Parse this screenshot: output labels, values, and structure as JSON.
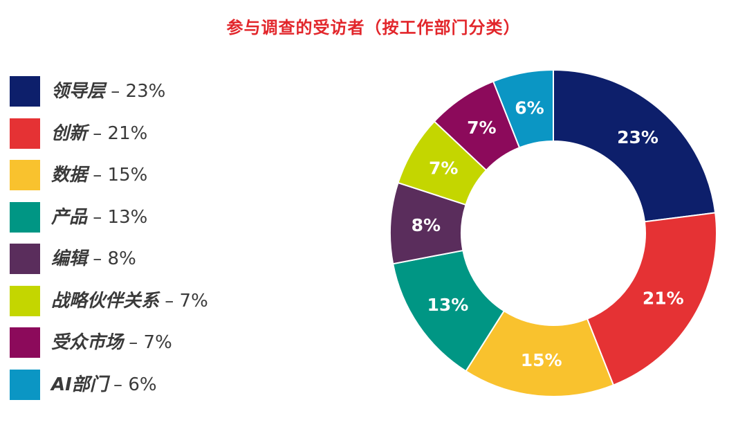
{
  "chart_data": {
    "type": "pie",
    "title": "参与调查的受访者（按工作部门分类）",
    "categories": [
      "领导层",
      "创新",
      "数据",
      "产品",
      "编辑",
      "战略伙伴关系",
      "受众市场",
      "AI部门"
    ],
    "values": [
      23,
      21,
      15,
      13,
      8,
      7,
      7,
      6
    ],
    "value_labels": [
      "23%",
      "21%",
      "15%",
      "13%",
      "8%",
      "7%",
      "7%",
      "6%"
    ],
    "colors": [
      "#0d1f6b",
      "#e53234",
      "#f9c22e",
      "#009684",
      "#5a2d5c",
      "#c4d600",
      "#8c0a5b",
      "#0b96c4"
    ],
    "legend": {
      "position": "left",
      "separator": "–",
      "items": [
        {
          "label": "领导层",
          "value_label": "23%"
        },
        {
          "label": "创新",
          "value_label": "21%"
        },
        {
          "label": "数据",
          "value_label": "15%"
        },
        {
          "label": "产品",
          "value_label": "13%"
        },
        {
          "label": "编辑",
          "value_label": "8%"
        },
        {
          "label": "战略伙伴关系",
          "value_label": "7%"
        },
        {
          "label": "受众市场",
          "value_label": "7%"
        },
        {
          "label": "AI部门",
          "value_label": "6%"
        }
      ]
    },
    "donut": true,
    "start_angle": "12 o'clock",
    "direction": "clockwise"
  }
}
